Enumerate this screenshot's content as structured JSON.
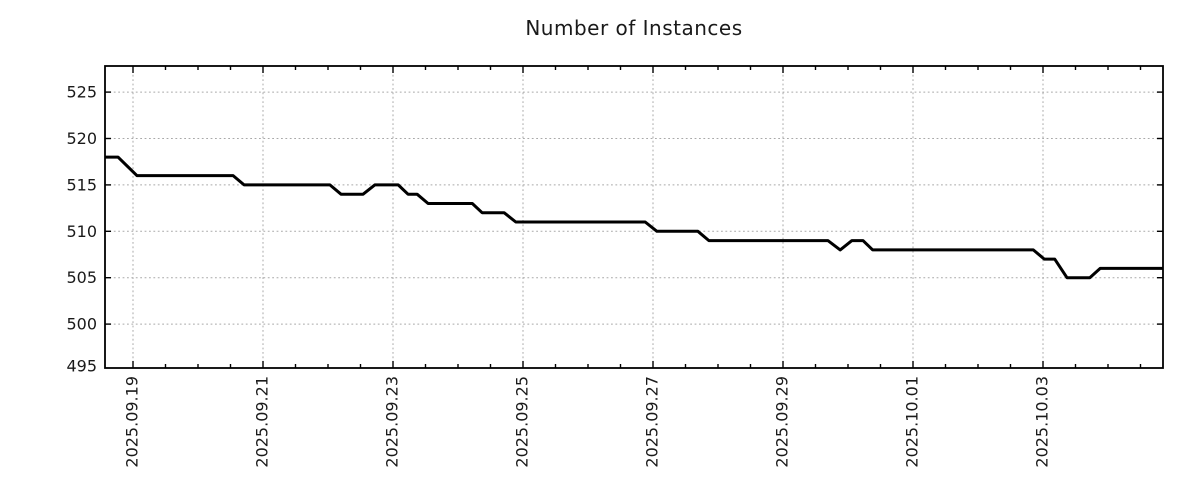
{
  "page": {
    "background": "#ffffff"
  },
  "chart_data": {
    "type": "line",
    "title": "Number of Instances",
    "legend": null,
    "grid": {
      "style": "dotted",
      "color": "#a9a9a9",
      "on": true
    },
    "border_color": "#000000",
    "x_axis": {
      "label": "",
      "tick_labels": [
        "2025.09.19",
        "2025.09.21",
        "2025.09.23",
        "2025.09.25",
        "2025.09.27",
        "2025.09.29",
        "2025.10.01",
        "2025.10.03"
      ],
      "tick_positions_days": [
        0,
        2,
        4,
        6,
        8,
        10,
        12,
        14
      ],
      "minor_tick_interval_days": 0.5,
      "domain_days": [
        -0.43,
        15.85
      ]
    },
    "y_axis": {
      "label": "",
      "ticks": [
        495,
        500,
        505,
        510,
        515,
        520,
        525
      ],
      "domain": [
        495,
        527.8
      ]
    },
    "series": [
      {
        "name": "instances",
        "color": "#000000",
        "line_width": 3,
        "points_t_days_value": [
          [
            -0.43,
            518
          ],
          [
            -0.23,
            518
          ],
          [
            0.06,
            516
          ],
          [
            1.54,
            516
          ],
          [
            1.71,
            515
          ],
          [
            3.03,
            515
          ],
          [
            3.2,
            514
          ],
          [
            3.54,
            514
          ],
          [
            3.72,
            515
          ],
          [
            4.08,
            515
          ],
          [
            4.23,
            514
          ],
          [
            4.37,
            514
          ],
          [
            4.54,
            513
          ],
          [
            5.22,
            513
          ],
          [
            5.37,
            512
          ],
          [
            5.71,
            512
          ],
          [
            5.89,
            511
          ],
          [
            7.88,
            511
          ],
          [
            8.06,
            510
          ],
          [
            8.69,
            510
          ],
          [
            8.86,
            509
          ],
          [
            10.69,
            509
          ],
          [
            10.88,
            508
          ],
          [
            11.06,
            509
          ],
          [
            11.23,
            509
          ],
          [
            11.38,
            508
          ],
          [
            13.85,
            508
          ],
          [
            14.02,
            507
          ],
          [
            14.18,
            507
          ],
          [
            14.37,
            505
          ],
          [
            14.72,
            505
          ],
          [
            14.88,
            506
          ],
          [
            15.85,
            506
          ]
        ]
      }
    ]
  }
}
